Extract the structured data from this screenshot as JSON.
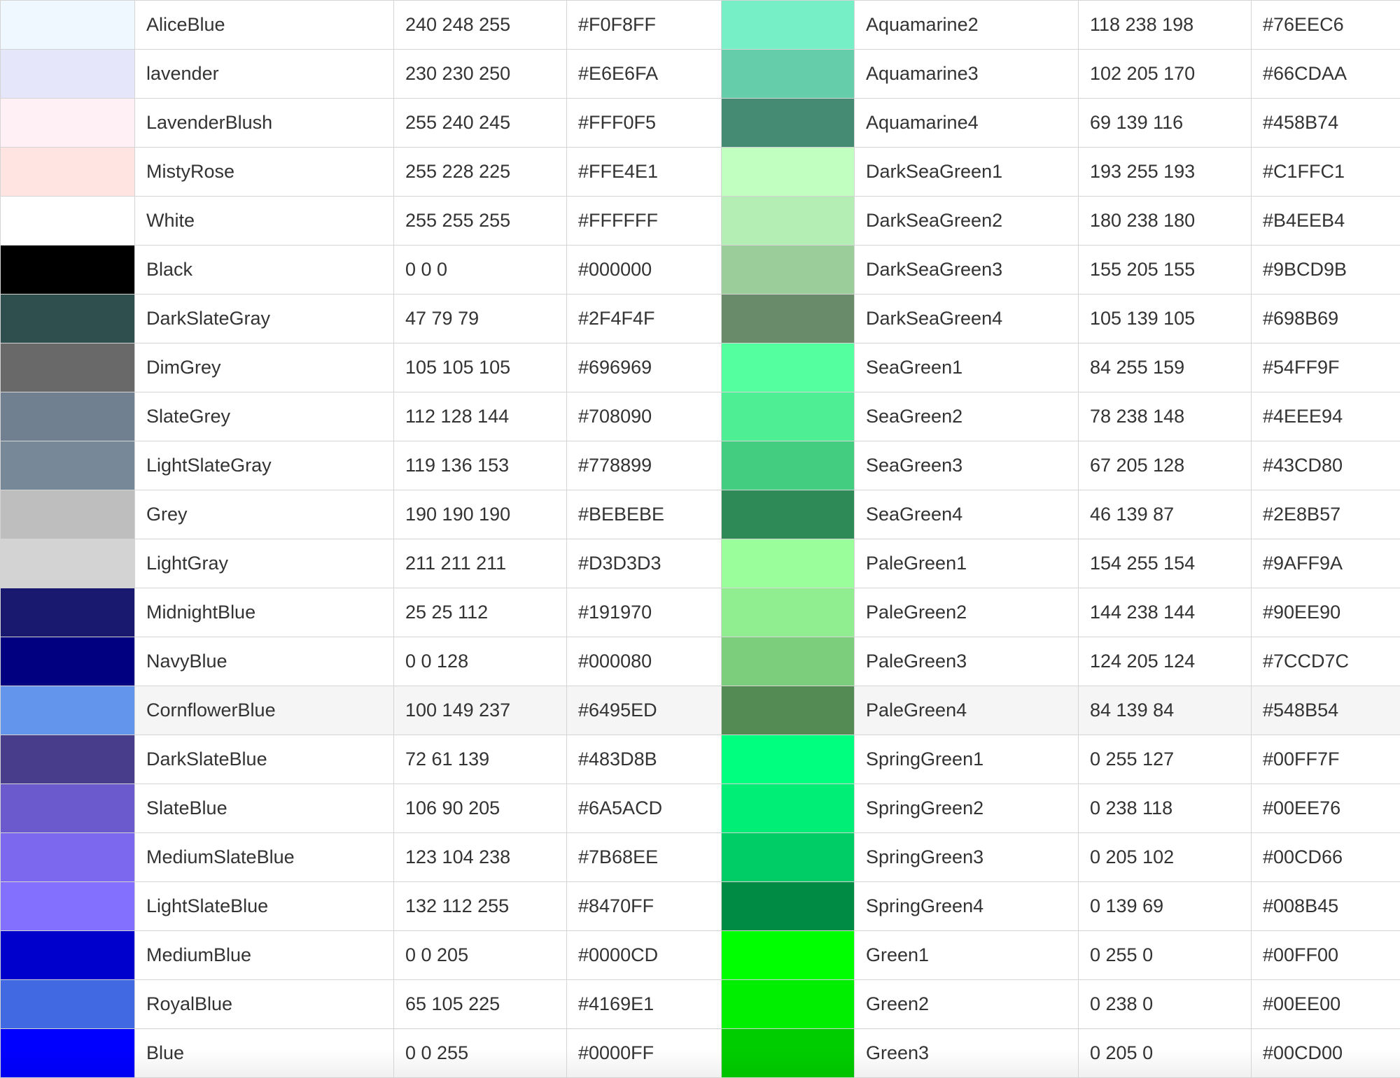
{
  "rows": [
    {
      "left": {
        "swatch": "#F0F8FF",
        "name": "AliceBlue",
        "rgb": "240 248 255",
        "hex": "#F0F8FF"
      },
      "right": {
        "swatch": "#76EEC6",
        "name": "Aquamarine2",
        "rgb": "118 238 198",
        "hex": "#76EEC6"
      }
    },
    {
      "left": {
        "swatch": "#E6E6FA",
        "name": "lavender",
        "rgb": "230 230 250",
        "hex": "#E6E6FA"
      },
      "right": {
        "swatch": "#66CDAA",
        "name": "Aquamarine3",
        "rgb": "102 205 170",
        "hex": "#66CDAA"
      }
    },
    {
      "left": {
        "swatch": "#FFF0F5",
        "name": "LavenderBlush",
        "rgb": "255 240 245",
        "hex": "#FFF0F5"
      },
      "right": {
        "swatch": "#458B74",
        "name": "Aquamarine4",
        "rgb": "69 139 116",
        "hex": "#458B74"
      }
    },
    {
      "left": {
        "swatch": "#FFE4E1",
        "name": "MistyRose",
        "rgb": "255 228 225",
        "hex": "#FFE4E1"
      },
      "right": {
        "swatch": "#C1FFC1",
        "name": "DarkSeaGreen1",
        "rgb": "193 255 193",
        "hex": "#C1FFC1"
      }
    },
    {
      "left": {
        "swatch": "#FFFFFF",
        "name": "White",
        "rgb": "255 255 255",
        "hex": "#FFFFFF"
      },
      "right": {
        "swatch": "#B4EEB4",
        "name": "DarkSeaGreen2",
        "rgb": "180 238 180",
        "hex": "#B4EEB4"
      }
    },
    {
      "left": {
        "swatch": "#000000",
        "name": "Black",
        "rgb": "0 0 0",
        "hex": "#000000"
      },
      "right": {
        "swatch": "#9BCD9B",
        "name": "DarkSeaGreen3",
        "rgb": "155 205 155",
        "hex": "#9BCD9B"
      }
    },
    {
      "left": {
        "swatch": "#2F4F4F",
        "name": "DarkSlateGray",
        "rgb": "47 79 79",
        "hex": "#2F4F4F"
      },
      "right": {
        "swatch": "#698B69",
        "name": "DarkSeaGreen4",
        "rgb": "105 139 105",
        "hex": "#698B69"
      }
    },
    {
      "left": {
        "swatch": "#696969",
        "name": "DimGrey",
        "rgb": "105 105 105",
        "hex": "#696969"
      },
      "right": {
        "swatch": "#54FF9F",
        "name": "SeaGreen1",
        "rgb": "84 255 159",
        "hex": "#54FF9F"
      }
    },
    {
      "left": {
        "swatch": "#708090",
        "name": "SlateGrey",
        "rgb": "112 128 144",
        "hex": "#708090"
      },
      "right": {
        "swatch": "#4EEE94",
        "name": "SeaGreen2",
        "rgb": "78 238 148",
        "hex": "#4EEE94"
      }
    },
    {
      "left": {
        "swatch": "#778899",
        "name": "LightSlateGray",
        "rgb": "119 136 153",
        "hex": "#778899"
      },
      "right": {
        "swatch": "#43CD80",
        "name": "SeaGreen3",
        "rgb": "67 205 128",
        "hex": "#43CD80"
      }
    },
    {
      "left": {
        "swatch": "#BEBEBE",
        "name": "Grey",
        "rgb": "190 190 190",
        "hex": "#BEBEBE"
      },
      "right": {
        "swatch": "#2E8B57",
        "name": "SeaGreen4",
        "rgb": "46 139 87",
        "hex": "#2E8B57"
      }
    },
    {
      "left": {
        "swatch": "#D3D3D3",
        "name": "LightGray",
        "rgb": "211 211 211",
        "hex": "#D3D3D3"
      },
      "right": {
        "swatch": "#9AFF9A",
        "name": "PaleGreen1",
        "rgb": "154 255 154",
        "hex": "#9AFF9A"
      }
    },
    {
      "left": {
        "swatch": "#191970",
        "name": "MidnightBlue",
        "rgb": "25 25 112",
        "hex": "#191970"
      },
      "right": {
        "swatch": "#90EE90",
        "name": "PaleGreen2",
        "rgb": "144 238 144",
        "hex": "#90EE90"
      }
    },
    {
      "left": {
        "swatch": "#000080",
        "name": "NavyBlue",
        "rgb": "0 0 128",
        "hex": "#000080"
      },
      "right": {
        "swatch": "#7CCD7C",
        "name": "PaleGreen3",
        "rgb": "124 205 124",
        "hex": "#7CCD7C"
      }
    },
    {
      "left": {
        "swatch": "#6495ED",
        "name": "CornflowerBlue",
        "rgb": "100 149 237",
        "hex": "#6495ED"
      },
      "right": {
        "swatch": "#548B54",
        "name": "PaleGreen4",
        "rgb": "84 139 84",
        "hex": "#548B54"
      },
      "hover": true
    },
    {
      "left": {
        "swatch": "#483D8B",
        "name": "DarkSlateBlue",
        "rgb": "72 61 139",
        "hex": "#483D8B"
      },
      "right": {
        "swatch": "#00FF7F",
        "name": "SpringGreen1",
        "rgb": "0 255 127",
        "hex": "#00FF7F"
      }
    },
    {
      "left": {
        "swatch": "#6A5ACD",
        "name": "SlateBlue",
        "rgb": "106 90 205",
        "hex": "#6A5ACD"
      },
      "right": {
        "swatch": "#00EE76",
        "name": "SpringGreen2",
        "rgb": "0 238 118",
        "hex": "#00EE76"
      }
    },
    {
      "left": {
        "swatch": "#7B68EE",
        "name": "MediumSlateBlue",
        "rgb": "123 104 238",
        "hex": "#7B68EE"
      },
      "right": {
        "swatch": "#00CD66",
        "name": "SpringGreen3",
        "rgb": "0 205 102",
        "hex": "#00CD66"
      }
    },
    {
      "left": {
        "swatch": "#8470FF",
        "name": "LightSlateBlue",
        "rgb": "132 112 255",
        "hex": "#8470FF"
      },
      "right": {
        "swatch": "#008B45",
        "name": "SpringGreen4",
        "rgb": "0 139 69",
        "hex": "#008B45"
      }
    },
    {
      "left": {
        "swatch": "#0000CD",
        "name": "MediumBlue",
        "rgb": "0 0 205",
        "hex": "#0000CD"
      },
      "right": {
        "swatch": "#00FF00",
        "name": "Green1",
        "rgb": "0 255 0",
        "hex": "#00FF00"
      }
    },
    {
      "left": {
        "swatch": "#4169E1",
        "name": "RoyalBlue",
        "rgb": "65 105 225",
        "hex": "#4169E1"
      },
      "right": {
        "swatch": "#00EE00",
        "name": "Green2",
        "rgb": "0 238 0",
        "hex": "#00EE00"
      }
    },
    {
      "left": {
        "swatch": "#0000FF",
        "name": "Blue",
        "rgb": "0 0 255",
        "hex": "#0000FF"
      },
      "right": {
        "swatch": "#00CD00",
        "name": "Green3",
        "rgb": "0 205 0",
        "hex": "#00CD00"
      },
      "fade": true
    }
  ]
}
